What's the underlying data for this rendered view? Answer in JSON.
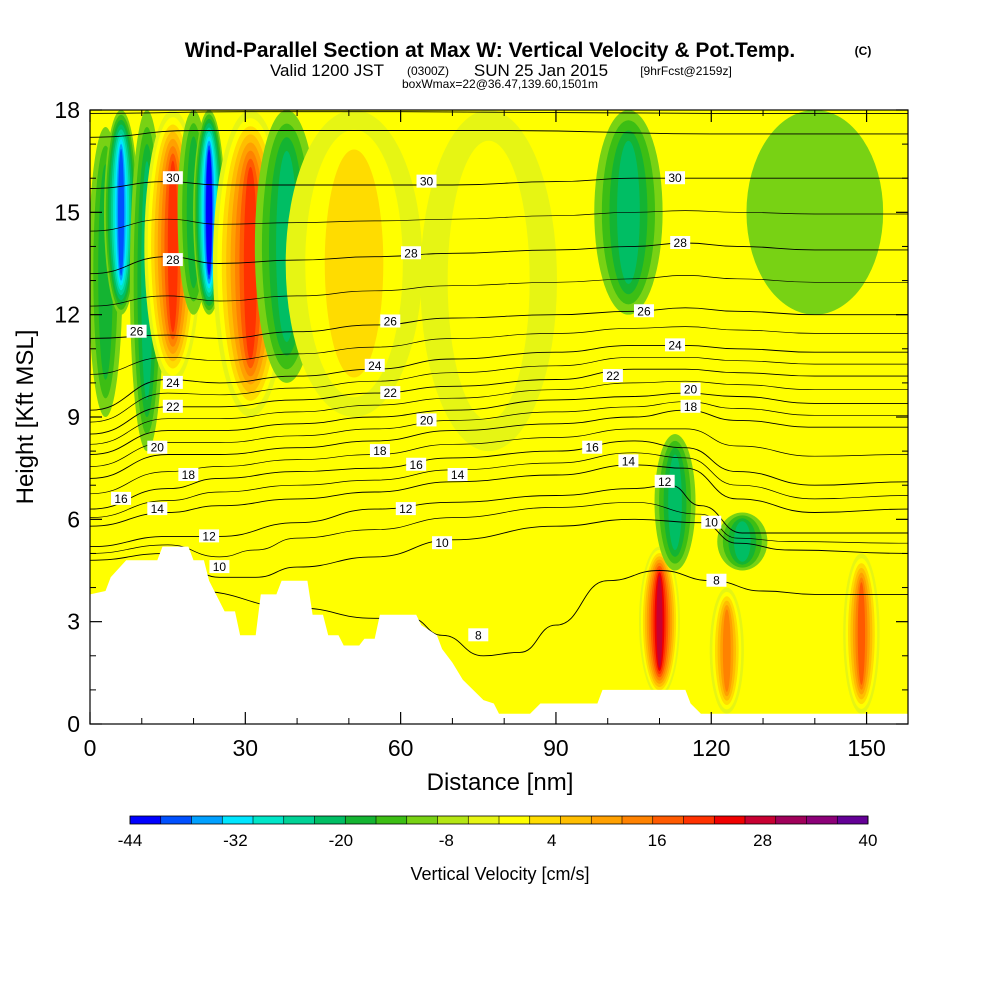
{
  "title": {
    "main": "Wind-Parallel Section at Max W: Vertical Velocity & Pot.Temp.",
    "copyright": "(C)",
    "valid_prefix": "Valid 1200 JST",
    "valid_utc": "(0300Z)",
    "valid_date": "SUN 25 Jan 2015",
    "forecast": "[9hrFcst@2159z]",
    "box_info": "boxWmax=22@36.47,139.60,1501m"
  },
  "chart_data": {
    "type": "heatmap",
    "xlabel": "Distance [nm]",
    "ylabel": "Height [Kft MSL]",
    "xlim": [
      0,
      158
    ],
    "ylim": [
      0,
      18
    ],
    "xticks": [
      0,
      30,
      60,
      90,
      120,
      150
    ],
    "yticks": [
      0,
      3,
      6,
      9,
      12,
      15,
      18
    ],
    "x_minor_step": 10,
    "y_minor_step": 1,
    "colorbar": {
      "label": "Vertical Velocity [cm/s]",
      "min": -44,
      "max": 40,
      "step": 4,
      "tick_labels": [
        -44,
        -32,
        -20,
        -8,
        4,
        16,
        28,
        40
      ],
      "colors": [
        "#0000ff",
        "#0050ff",
        "#00a0ff",
        "#00e6ff",
        "#00e6c8",
        "#00d296",
        "#00be64",
        "#14b432",
        "#3cbe14",
        "#78d214",
        "#b4e614",
        "#e6f514",
        "#ffff00",
        "#ffdc00",
        "#ffbe00",
        "#ffa000",
        "#ff8200",
        "#ff5a00",
        "#ff3200",
        "#f00000",
        "#c80032",
        "#a0005a",
        "#8c0078",
        "#640096"
      ]
    },
    "velocity_features": [
      {
        "x": 3,
        "z_top": 17.5,
        "z_bottom": 9,
        "width": 1.5,
        "value": -12
      },
      {
        "x": 6,
        "z_top": 18,
        "z_bottom": 12,
        "width": 1.5,
        "value": -36
      },
      {
        "x": 11,
        "z_top": 18,
        "z_bottom": 8,
        "width": 1.5,
        "value": -16
      },
      {
        "x": 16,
        "z_top": 18,
        "z_bottom": 10,
        "width": 2.5,
        "value": 34
      },
      {
        "x": 20,
        "z_top": 18,
        "z_bottom": 12,
        "width": 1.4,
        "value": -14
      },
      {
        "x": 23,
        "z_top": 18,
        "z_bottom": 12,
        "width": 1.4,
        "value": -40
      },
      {
        "x": 31,
        "z_top": 18,
        "z_bottom": 9,
        "width": 3.3,
        "value": 34
      },
      {
        "x": 38,
        "z_top": 18,
        "z_bottom": 10,
        "width": 2.8,
        "value": -18
      },
      {
        "x": 51,
        "z_top": 18,
        "z_bottom": 9,
        "width": 6,
        "value": 14
      },
      {
        "x": 77,
        "z_top": 18,
        "z_bottom": 8,
        "width": 6,
        "value": 10
      },
      {
        "x": 104,
        "z_top": 18,
        "z_bottom": 12,
        "width": 3,
        "value": -16
      },
      {
        "x": 110,
        "z_top": 5.2,
        "z_bottom": 0.8,
        "width": 1.8,
        "value": 40
      },
      {
        "x": 113,
        "z_top": 8.5,
        "z_bottom": 4.5,
        "width": 1.8,
        "value": -16
      },
      {
        "x": 123,
        "z_top": 4,
        "z_bottom": 0.3,
        "width": 1.5,
        "value": 24
      },
      {
        "x": 126,
        "z_top": 6.2,
        "z_bottom": 4.5,
        "width": 2.2,
        "value": -18
      },
      {
        "x": 140,
        "z_top": 18,
        "z_bottom": 12,
        "width": 6,
        "value": -4
      },
      {
        "x": 149,
        "z_top": 5,
        "z_bottom": 0.3,
        "width": 1.6,
        "value": 28
      }
    ],
    "terrain": [
      [
        0,
        3.8
      ],
      [
        3,
        3.9
      ],
      [
        4,
        4.3
      ],
      [
        7,
        4.8
      ],
      [
        13,
        4.8
      ],
      [
        14,
        5.2
      ],
      [
        19,
        5.2
      ],
      [
        20,
        4.8
      ],
      [
        22,
        4.8
      ],
      [
        23,
        4.2
      ],
      [
        26,
        3.3
      ],
      [
        28,
        3.3
      ],
      [
        29,
        2.6
      ],
      [
        32,
        2.6
      ],
      [
        33,
        3.8
      ],
      [
        36,
        3.8
      ],
      [
        37,
        4.2
      ],
      [
        42,
        4.2
      ],
      [
        43,
        3.2
      ],
      [
        45,
        3.2
      ],
      [
        46,
        2.6
      ],
      [
        48,
        2.6
      ],
      [
        49,
        2.3
      ],
      [
        52,
        2.3
      ],
      [
        53,
        2.5
      ],
      [
        55,
        2.5
      ],
      [
        56,
        3.2
      ],
      [
        63,
        3.2
      ],
      [
        64,
        2.9
      ],
      [
        65,
        2.8
      ],
      [
        67,
        2.6
      ],
      [
        68,
        2.2
      ],
      [
        70,
        1.8
      ],
      [
        72,
        1.3
      ],
      [
        74,
        1.0
      ],
      [
        76,
        0.7
      ],
      [
        78,
        0.6
      ],
      [
        79,
        0.3
      ],
      [
        85,
        0.3
      ],
      [
        87,
        0.6
      ],
      [
        98,
        0.6
      ],
      [
        99,
        1.0
      ],
      [
        115,
        1.0
      ],
      [
        116,
        0.6
      ],
      [
        118,
        0.3
      ],
      [
        158,
        0.3
      ]
    ],
    "isentropes": [
      {
        "level": 8,
        "points": [
          [
            0,
            3.6
          ],
          [
            20,
            3.9
          ],
          [
            40,
            3.4
          ],
          [
            55,
            3.1
          ],
          [
            62,
            3.1
          ],
          [
            68,
            2.6
          ],
          [
            76,
            2.0
          ],
          [
            83,
            2.1
          ],
          [
            90,
            2.9
          ],
          [
            100,
            4.2
          ],
          [
            110,
            4.5
          ],
          [
            120,
            4.2
          ],
          [
            130,
            3.9
          ],
          [
            140,
            3.8
          ],
          [
            158,
            3.8
          ]
        ]
      },
      {
        "level": 10,
        "points": [
          [
            0,
            4.8
          ],
          [
            15,
            5.0
          ],
          [
            25,
            4.3
          ],
          [
            32,
            4.3
          ],
          [
            40,
            4.6
          ],
          [
            55,
            4.9
          ],
          [
            70,
            5.4
          ],
          [
            90,
            5.8
          ],
          [
            105,
            6.0
          ],
          [
            118,
            5.9
          ],
          [
            125,
            5.3
          ],
          [
            135,
            5.1
          ],
          [
            158,
            5.0
          ]
        ]
      },
      {
        "level": 12,
        "points": [
          [
            0,
            5.2
          ],
          [
            15,
            5.5
          ],
          [
            25,
            5.5
          ],
          [
            40,
            5.9
          ],
          [
            55,
            6.3
          ],
          [
            70,
            6.5
          ],
          [
            90,
            6.7
          ],
          [
            105,
            6.9
          ],
          [
            112,
            7.0
          ],
          [
            118,
            6.4
          ],
          [
            126,
            5.6
          ],
          [
            140,
            5.6
          ],
          [
            158,
            5.6
          ]
        ]
      },
      {
        "level": 14,
        "points": [
          [
            0,
            5.8
          ],
          [
            15,
            6.2
          ],
          [
            25,
            6.4
          ],
          [
            40,
            6.6
          ],
          [
            55,
            6.8
          ],
          [
            70,
            7.1
          ],
          [
            90,
            7.3
          ],
          [
            105,
            7.6
          ],
          [
            115,
            7.5
          ],
          [
            125,
            6.6
          ],
          [
            140,
            6.2
          ],
          [
            158,
            6.3
          ]
        ]
      },
      {
        "level": 16,
        "points": [
          [
            0,
            6.3
          ],
          [
            15,
            6.9
          ],
          [
            25,
            7.2
          ],
          [
            40,
            7.4
          ],
          [
            55,
            7.5
          ],
          [
            70,
            7.8
          ],
          [
            90,
            8.0
          ],
          [
            105,
            8.3
          ],
          [
            115,
            8.1
          ],
          [
            125,
            7.4
          ],
          [
            140,
            7.0
          ],
          [
            158,
            7.1
          ]
        ]
      },
      {
        "level": 18,
        "points": [
          [
            0,
            7.2
          ],
          [
            15,
            7.9
          ],
          [
            25,
            7.9
          ],
          [
            40,
            8.1
          ],
          [
            55,
            8.3
          ],
          [
            70,
            8.6
          ],
          [
            90,
            8.8
          ],
          [
            105,
            9.0
          ],
          [
            115,
            9.2
          ],
          [
            125,
            8.9
          ],
          [
            140,
            8.7
          ],
          [
            158,
            8.7
          ]
        ]
      },
      {
        "level": 20,
        "points": [
          [
            0,
            7.9
          ],
          [
            15,
            8.6
          ],
          [
            25,
            8.6
          ],
          [
            40,
            8.8
          ],
          [
            55,
            9.0
          ],
          [
            70,
            9.2
          ],
          [
            90,
            9.5
          ],
          [
            105,
            9.6
          ],
          [
            115,
            9.7
          ],
          [
            125,
            9.6
          ],
          [
            140,
            9.4
          ],
          [
            158,
            9.4
          ]
        ]
      },
      {
        "level": 22,
        "points": [
          [
            0,
            8.5
          ],
          [
            15,
            9.3
          ],
          [
            25,
            9.3
          ],
          [
            40,
            9.5
          ],
          [
            55,
            9.7
          ],
          [
            70,
            9.9
          ],
          [
            90,
            10.1
          ],
          [
            105,
            10.4
          ],
          [
            115,
            10.4
          ],
          [
            125,
            10.3
          ],
          [
            140,
            10.2
          ],
          [
            158,
            10.2
          ]
        ]
      },
      {
        "level": 24,
        "points": [
          [
            0,
            9.2
          ],
          [
            15,
            10.1
          ],
          [
            25,
            10.0
          ],
          [
            40,
            10.2
          ],
          [
            55,
            10.4
          ],
          [
            70,
            10.7
          ],
          [
            90,
            10.9
          ],
          [
            105,
            11.1
          ],
          [
            115,
            11.1
          ],
          [
            125,
            11.0
          ],
          [
            140,
            10.9
          ],
          [
            158,
            10.9
          ]
        ]
      },
      {
        "level": 26,
        "points": [
          [
            0,
            11.3
          ],
          [
            15,
            11.4
          ],
          [
            25,
            11.3
          ],
          [
            40,
            11.5
          ],
          [
            55,
            11.7
          ],
          [
            70,
            11.9
          ],
          [
            90,
            12.0
          ],
          [
            105,
            12.1
          ],
          [
            115,
            12.2
          ],
          [
            125,
            12.1
          ],
          [
            140,
            12.0
          ],
          [
            158,
            12.0
          ]
        ]
      },
      {
        "level": 28,
        "points": [
          [
            0,
            13.2
          ],
          [
            15,
            13.7
          ],
          [
            25,
            13.5
          ],
          [
            40,
            13.6
          ],
          [
            55,
            13.7
          ],
          [
            70,
            13.8
          ],
          [
            90,
            13.9
          ],
          [
            105,
            14.0
          ],
          [
            115,
            14.1
          ],
          [
            125,
            14.0
          ],
          [
            140,
            13.9
          ],
          [
            158,
            13.9
          ]
        ]
      },
      {
        "level": 30,
        "points": [
          [
            0,
            15.7
          ],
          [
            15,
            15.9
          ],
          [
            25,
            15.8
          ],
          [
            40,
            15.8
          ],
          [
            55,
            15.8
          ],
          [
            70,
            15.8
          ],
          [
            90,
            15.9
          ],
          [
            105,
            16.0
          ],
          [
            115,
            16.0
          ],
          [
            125,
            16.0
          ],
          [
            140,
            16.0
          ],
          [
            158,
            16.0
          ]
        ]
      },
      {
        "level": 32,
        "points": [
          [
            0,
            17.2
          ],
          [
            20,
            17.4
          ],
          [
            40,
            17.4
          ],
          [
            80,
            17.4
          ],
          [
            120,
            17.3
          ],
          [
            158,
            17.3
          ]
        ]
      },
      {
        "level": 34,
        "points": [
          [
            0,
            17.9
          ],
          [
            30,
            17.95
          ],
          [
            60,
            17.95
          ],
          [
            120,
            17.9
          ],
          [
            158,
            17.9
          ]
        ]
      }
    ],
    "isentrope_labels": [
      {
        "text": "30",
        "x": 16,
        "z": 16.0
      },
      {
        "text": "30",
        "x": 65,
        "z": 15.9
      },
      {
        "text": "30",
        "x": 113,
        "z": 16.0
      },
      {
        "text": "28",
        "x": 16,
        "z": 13.6
      },
      {
        "text": "28",
        "x": 62,
        "z": 13.8
      },
      {
        "text": "28",
        "x": 114,
        "z": 14.1
      },
      {
        "text": "26",
        "x": 9,
        "z": 11.5
      },
      {
        "text": "26",
        "x": 58,
        "z": 11.8
      },
      {
        "text": "26",
        "x": 107,
        "z": 12.1
      },
      {
        "text": "24",
        "x": 16,
        "z": 10.0
      },
      {
        "text": "24",
        "x": 55,
        "z": 10.5
      },
      {
        "text": "24",
        "x": 113,
        "z": 11.1
      },
      {
        "text": "22",
        "x": 16,
        "z": 9.3
      },
      {
        "text": "22",
        "x": 58,
        "z": 9.7
      },
      {
        "text": "22",
        "x": 101,
        "z": 10.2
      },
      {
        "text": "20",
        "x": 13,
        "z": 8.1
      },
      {
        "text": "20",
        "x": 65,
        "z": 8.9
      },
      {
        "text": "20",
        "x": 116,
        "z": 9.8
      },
      {
        "text": "18",
        "x": 19,
        "z": 7.3
      },
      {
        "text": "18",
        "x": 56,
        "z": 8.0
      },
      {
        "text": "18",
        "x": 116,
        "z": 9.3
      },
      {
        "text": "16",
        "x": 6,
        "z": 6.6
      },
      {
        "text": "16",
        "x": 63,
        "z": 7.6
      },
      {
        "text": "16",
        "x": 97,
        "z": 8.1
      },
      {
        "text": "14",
        "x": 13,
        "z": 6.3
      },
      {
        "text": "14",
        "x": 71,
        "z": 7.3
      },
      {
        "text": "14",
        "x": 104,
        "z": 7.7
      },
      {
        "text": "12",
        "x": 23,
        "z": 5.5
      },
      {
        "text": "12",
        "x": 61,
        "z": 6.3
      },
      {
        "text": "12",
        "x": 111,
        "z": 7.1
      },
      {
        "text": "10",
        "x": 25,
        "z": 4.6
      },
      {
        "text": "10",
        "x": 68,
        "z": 5.3
      },
      {
        "text": "10",
        "x": 120,
        "z": 5.9
      },
      {
        "text": "8",
        "x": 75,
        "z": 2.6
      },
      {
        "text": "8",
        "x": 121,
        "z": 4.2
      }
    ]
  }
}
